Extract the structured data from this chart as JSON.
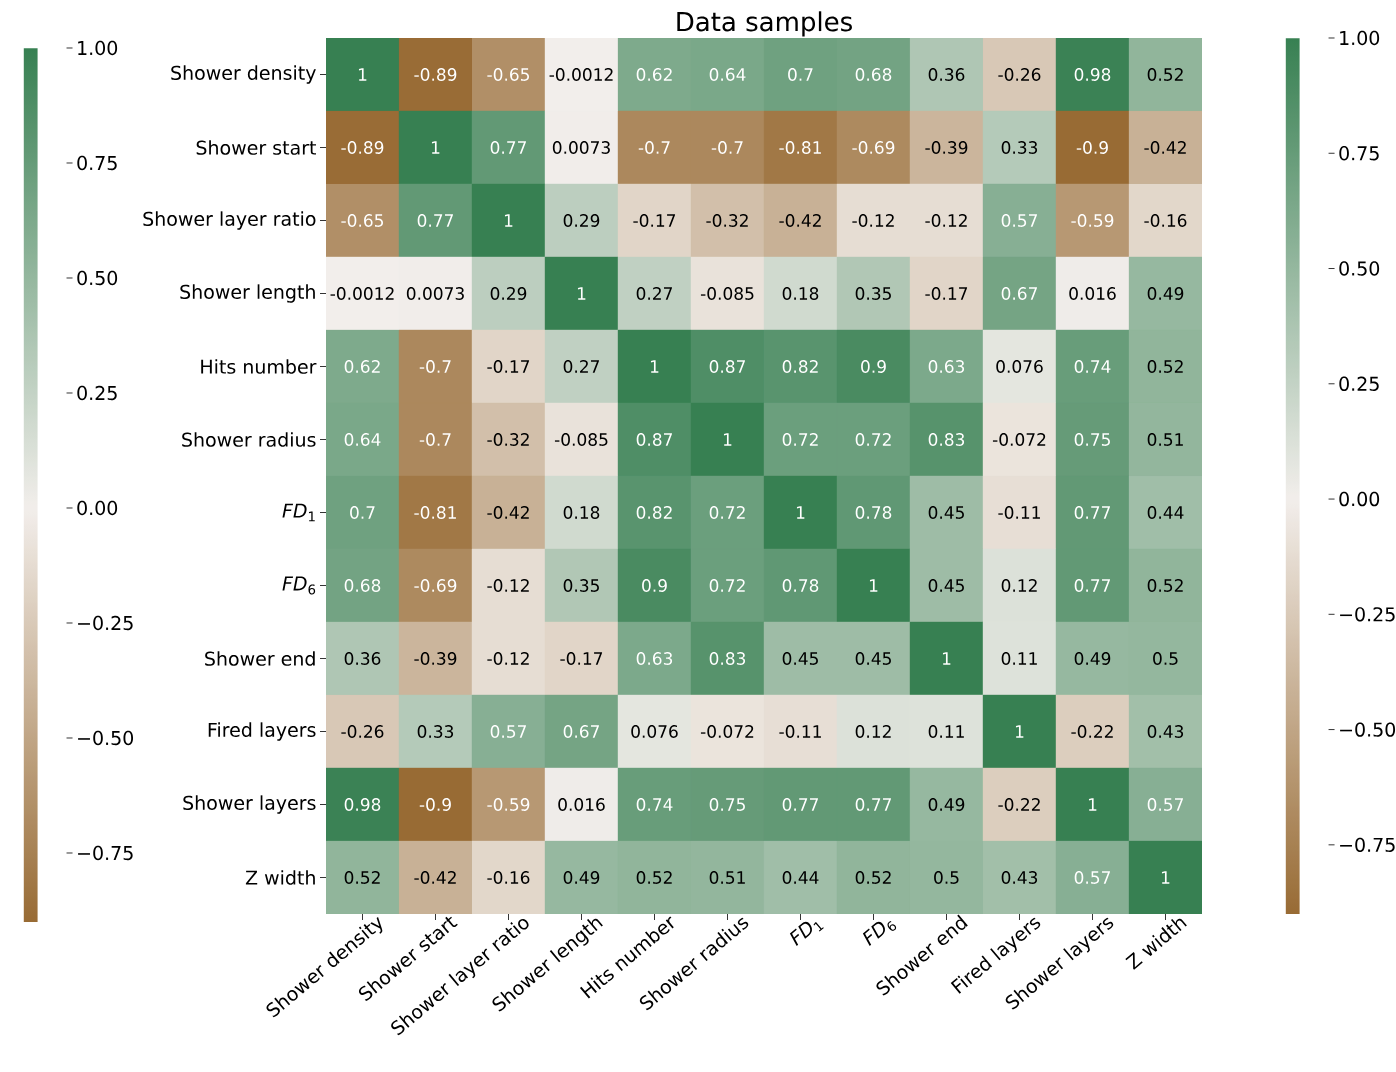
{
  "chart_data": {
    "type": "heatmap",
    "title": "Data samples",
    "categories": [
      "Shower density",
      "Shower start",
      "Shower layer ratio",
      "Shower length",
      "Hits number",
      "Shower radius",
      "*FD*$_{1}$",
      "*FD*$_{6}$",
      "Shower end",
      "Fired layers",
      "Shower layers",
      "Z width"
    ],
    "y_categories": [
      "Shower density",
      "Shower start",
      "Shower layer ratio",
      "Shower length",
      "Hits number",
      "Shower radius",
      "*FD*$_{1}$",
      "*FD*$_{6}$",
      "Shower end",
      "Fired layers",
      "Shower layers",
      "Z width"
    ],
    "cells": [
      [
        1,
        -0.89,
        -0.65,
        -0.0012,
        0.62,
        0.64,
        0.7,
        0.68,
        0.36,
        -0.26,
        0.98,
        0.52
      ],
      [
        -0.89,
        1,
        0.77,
        0.0073,
        -0.7,
        -0.7,
        -0.81,
        -0.69,
        -0.39,
        0.33,
        -0.9,
        -0.42
      ],
      [
        -0.65,
        0.77,
        1,
        0.29,
        -0.17,
        -0.32,
        -0.42,
        -0.12,
        -0.12,
        0.57,
        -0.59,
        -0.16
      ],
      [
        -0.0012,
        0.0073,
        0.29,
        1,
        0.27,
        -0.085,
        0.18,
        0.35,
        -0.17,
        0.67,
        0.016,
        0.49
      ],
      [
        0.62,
        -0.7,
        -0.17,
        0.27,
        1,
        0.87,
        0.82,
        0.9,
        0.63,
        0.076,
        0.74,
        0.52
      ],
      [
        0.64,
        -0.7,
        -0.32,
        -0.085,
        0.87,
        1,
        0.72,
        0.72,
        0.83,
        -0.072,
        0.75,
        0.51
      ],
      [
        0.7,
        -0.81,
        -0.42,
        0.18,
        0.82,
        0.72,
        1,
        0.78,
        0.45,
        -0.11,
        0.77,
        0.44
      ],
      [
        0.68,
        -0.69,
        -0.12,
        0.35,
        0.9,
        0.72,
        0.78,
        1,
        0.45,
        0.12,
        0.77,
        0.52
      ],
      [
        0.36,
        -0.39,
        -0.12,
        -0.17,
        0.63,
        0.83,
        0.45,
        0.45,
        1,
        0.11,
        0.49,
        0.5
      ],
      [
        -0.26,
        0.33,
        0.57,
        0.67,
        0.076,
        -0.072,
        -0.11,
        0.12,
        0.11,
        1,
        -0.22,
        0.43
      ],
      [
        0.98,
        -0.9,
        -0.59,
        0.016,
        0.74,
        0.75,
        0.77,
        0.77,
        0.49,
        -0.22,
        1,
        0.57
      ],
      [
        0.52,
        -0.42,
        -0.16,
        0.49,
        0.52,
        0.51,
        0.44,
        0.52,
        0.5,
        0.43,
        0.57,
        1
      ]
    ],
    "data_labels": true,
    "clim": [
      -0.9,
      1
    ],
    "cticks": [
      {
        "value": 1,
        "label": "1.00"
      },
      {
        "value": 0.75,
        "label": "0.75"
      },
      {
        "value": 0.5,
        "label": "0.50"
      },
      {
        "value": 0.25,
        "label": "0.25"
      },
      {
        "value": 0,
        "label": "0.00"
      },
      {
        "value": -0.25,
        "label": "−0.25"
      },
      {
        "value": -0.5,
        "label": "−0.50"
      },
      {
        "value": -0.75,
        "label": "−0.75"
      }
    ]
  }
}
